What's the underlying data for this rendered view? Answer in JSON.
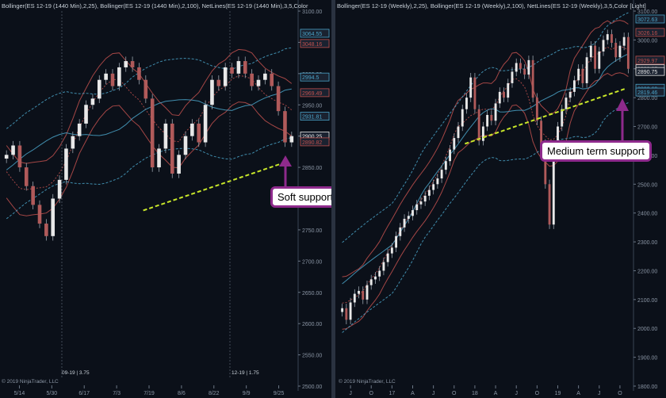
{
  "left_panel": {
    "header": "Bollinger(ES 12-19 (1440 Min),2,25), Bollinger(ES 12-19 (1440 Min),2,100), NetLines(ES 12-19 (1440 Min),3,5,Color",
    "copyright": "© 2019 NinjaTrader, LLC",
    "session_labels": [
      "09-19 | 3.75",
      "12-19 | 1.75"
    ],
    "callout": "Soft support"
  },
  "right_panel": {
    "header": "Bollinger(ES 12-19 (Weekly),2,25), Bollinger(ES 12-19 (Weekly),2,100), NetLines(ES 12-19 (Weekly),3,5,Color [Light]",
    "copyright": "© 2019 NinjaTrader, LLC",
    "callout": "Medium term support"
  },
  "colors": {
    "up": "#e8e8e8",
    "down": "#b05a5a",
    "band_inner": "#c0504d",
    "band_outer": "#4aa3c8",
    "support": "#c8e62a",
    "callout_border": "#8e2a8c",
    "arrow": "#8e2a8c"
  },
  "chart_data": [
    {
      "type": "candlestick",
      "title": "",
      "ylim": [
        2500,
        3100
      ],
      "y_ticks": [
        3100,
        3050,
        3000,
        2950,
        2900,
        2850,
        2800,
        2750,
        2700,
        2650,
        2600,
        2550,
        2500
      ],
      "y_tick_labels": [
        "3100.00",
        "3050.00",
        "3000.00",
        "2950.00",
        "2900.00",
        "2850.00",
        "2800.00",
        "2750.00",
        "2700.00",
        "2650.00",
        "2600.00",
        "2550.00",
        "2500.00"
      ],
      "x_tick_labels": [
        "5/14",
        "5/30",
        "6/17",
        "7/3",
        "7/19",
        "8/6",
        "8/22",
        "9/9",
        "9/25"
      ],
      "price_tags": [
        {
          "value": 3064.55,
          "label": "3064.55",
          "color": "#4aa3c8"
        },
        {
          "value": 3048.16,
          "label": "3048.16",
          "color": "#c0504d"
        },
        {
          "value": 2994.5,
          "label": "2994.5",
          "color": "#4aa3c8"
        },
        {
          "value": 2969.49,
          "label": "2969.49",
          "color": "#c0504d"
        },
        {
          "value": 2931.81,
          "label": "2931.81",
          "color": "#4aa3c8"
        },
        {
          "value": 2900.25,
          "label": "2900.25",
          "color": "#e6e6e6"
        },
        {
          "value": 2890.82,
          "label": "2890.82",
          "color": "#c0504d"
        }
      ],
      "price_path": [
        2870,
        2885,
        2850,
        2820,
        2790,
        2760,
        2740,
        2800,
        2830,
        2880,
        2900,
        2920,
        2950,
        2960,
        2990,
        3000,
        2980,
        3010,
        3020,
        3010,
        2990,
        2960,
        2850,
        2880,
        2920,
        2840,
        2870,
        2900,
        2920,
        2890,
        2950,
        2990,
        2980,
        3010,
        3000,
        3020,
        3000,
        2980,
        2990,
        3000,
        2980,
        2940,
        2890,
        2900
      ],
      "support_line": {
        "from": {
          "x": 0.48,
          "y": 2781
        },
        "to": {
          "x": 0.96,
          "y": 2857
        }
      },
      "annotation": "Soft support"
    },
    {
      "type": "candlestick",
      "title": "",
      "ylim": [
        1800,
        3100
      ],
      "y_ticks": [
        3100,
        3000,
        2900,
        2800,
        2700,
        2600,
        2500,
        2400,
        2300,
        2200,
        2100,
        2000,
        1900,
        1800
      ],
      "y_tick_labels": [
        "3100.00",
        "3000.00",
        "2900.00",
        "2800.00",
        "2700.00",
        "2600.00",
        "2500.00",
        "2400.00",
        "2300.00",
        "2200.00",
        "2100.00",
        "2000.00",
        "1900.00",
        "1800.00"
      ],
      "x_tick_labels": [
        "J",
        "O",
        "17",
        "A",
        "J",
        "O",
        "18",
        "A",
        "J",
        "O",
        "19",
        "A",
        "J",
        "O"
      ],
      "price_tags": [
        {
          "value": 3072.63,
          "label": "3072.63",
          "color": "#4aa3c8"
        },
        {
          "value": 3026.16,
          "label": "3026.16",
          "color": "#c0504d"
        },
        {
          "value": 2929.97,
          "label": "2929.97",
          "color": "#c0504d"
        },
        {
          "value": 2900.25,
          "label": "2900.25",
          "color": "#e6e6e6"
        },
        {
          "value": 2890.75,
          "label": "2890.75",
          "color": "#e6e6e6"
        },
        {
          "value": 2832.69,
          "label": "2832.69",
          "color": "#4aa3c8"
        },
        {
          "value": 2819.46,
          "label": "2819.46",
          "color": "#4aa3c8"
        }
      ],
      "price_path": [
        2070,
        2030,
        2090,
        2120,
        2130,
        2100,
        2150,
        2170,
        2180,
        2200,
        2230,
        2260,
        2280,
        2320,
        2350,
        2380,
        2390,
        2410,
        2430,
        2440,
        2460,
        2480,
        2500,
        2520,
        2550,
        2580,
        2620,
        2660,
        2700,
        2760,
        2800,
        2870,
        2760,
        2650,
        2700,
        2740,
        2720,
        2780,
        2820,
        2800,
        2850,
        2890,
        2920,
        2900,
        2880,
        2930,
        2800,
        2720,
        2640,
        2500,
        2360,
        2600,
        2700,
        2760,
        2800,
        2820,
        2860,
        2900,
        2850,
        2940,
        2980,
        2900,
        2960,
        3000,
        3020,
        2990,
        2940,
        2980,
        3010,
        2900
      ],
      "support_line": {
        "from": {
          "x": 0.43,
          "y": 2640
        },
        "to": {
          "x": 0.98,
          "y": 2830
        }
      },
      "annotation": "Medium term support"
    }
  ]
}
